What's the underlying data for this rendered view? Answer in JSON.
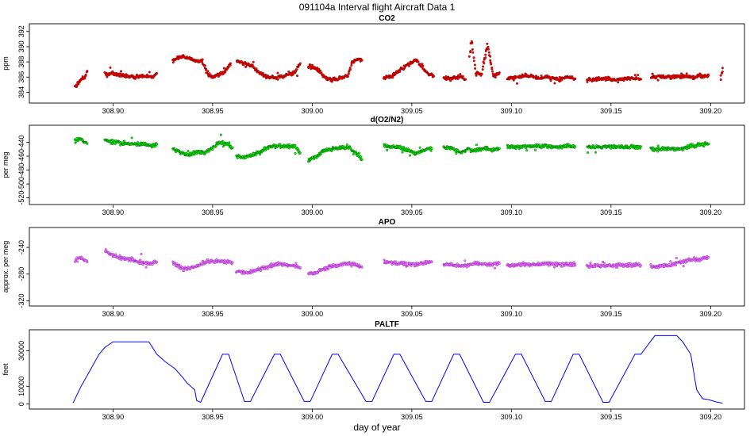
{
  "figure": {
    "title": "091104a   Interval flight Aircraft Data 1",
    "xlabel": "day of year"
  },
  "chart_data": [
    {
      "type": "scatter",
      "id": "co2",
      "title": "CO2",
      "ylabel": "ppm",
      "color": "#ff0000",
      "edge": "#7a0000",
      "xlim": [
        308.86,
        309.215
      ],
      "ylim": [
        383.0,
        392.6
      ],
      "yticks": [
        384,
        386,
        388,
        390,
        392
      ],
      "xticks": [
        "308.90",
        "308.95",
        "309.00",
        "309.05",
        "309.10",
        "309.15",
        "309.20"
      ],
      "series": [
        {
          "x": [
            308.881,
            308.882,
            308.884,
            308.886,
            308.887
          ],
          "y": [
            384.8,
            384.9,
            385.8,
            386.0,
            386.8
          ]
        },
        {
          "x": [
            308.896,
            308.9,
            308.905,
            308.91,
            308.915,
            308.92,
            308.922
          ],
          "y": [
            386.4,
            386.5,
            386.2,
            386.0,
            386.1,
            386.0,
            386.5
          ]
        },
        {
          "x": [
            308.93,
            308.933,
            308.937,
            308.941,
            308.945,
            308.947,
            308.95,
            308.954,
            308.957,
            308.959
          ],
          "y": [
            388.1,
            388.7,
            388.6,
            388.2,
            388.0,
            386.6,
            386.0,
            386.4,
            387.0,
            387.8
          ]
        },
        {
          "x": [
            308.962,
            308.966,
            308.97,
            308.974,
            308.978,
            308.983,
            308.987,
            308.991,
            308.994
          ],
          "y": [
            388.2,
            387.8,
            387.4,
            386.5,
            386.0,
            385.9,
            386.3,
            386.6,
            387.8
          ]
        },
        {
          "x": [
            308.998,
            309.002,
            309.006,
            309.01,
            309.014,
            309.018,
            309.02,
            309.022,
            309.025
          ],
          "y": [
            387.4,
            387.2,
            386.0,
            385.6,
            385.9,
            386.2,
            388.0,
            388.3,
            388.2
          ]
        },
        {
          "x": [
            309.036,
            309.04,
            309.044,
            309.048,
            309.052,
            309.055,
            309.058,
            309.061
          ],
          "y": [
            386.0,
            386.1,
            386.9,
            387.6,
            388.3,
            387.4,
            386.4,
            386.1
          ]
        },
        {
          "x": [
            309.066,
            309.07,
            309.074,
            309.077
          ],
          "y": [
            385.9,
            385.8,
            386.1,
            385.7
          ]
        },
        {
          "x": [
            309.079,
            309.08,
            309.082,
            309.085,
            309.088,
            309.091,
            309.094
          ],
          "y": [
            388.6,
            390.8,
            386.6,
            386.3,
            390.2,
            386.0,
            386.6
          ]
        },
        {
          "x": [
            309.098,
            309.103,
            309.108,
            309.113,
            309.118,
            309.123,
            309.128,
            309.132
          ],
          "y": [
            385.8,
            386.0,
            386.2,
            385.9,
            386.0,
            385.7,
            386.0,
            385.8
          ]
        },
        {
          "x": [
            309.138,
            309.143,
            309.148,
            309.153,
            309.158,
            309.163,
            309.165
          ],
          "y": [
            385.6,
            385.7,
            385.8,
            385.6,
            385.8,
            385.9,
            385.7
          ]
        },
        {
          "x": [
            309.17,
            309.175,
            309.18,
            309.185,
            309.19,
            309.195,
            309.199
          ],
          "y": [
            386.0,
            386.1,
            386.0,
            386.2,
            386.0,
            386.1,
            386.2
          ]
        },
        {
          "x": [
            309.205,
            309.206
          ],
          "y": [
            385.8,
            387.2
          ]
        }
      ]
    },
    {
      "type": "scatter",
      "id": "o2n2",
      "title": "d(O2/N2)",
      "ylabel": "per meg",
      "color": "#00ff00",
      "edge": "#005500",
      "xlim": [
        308.86,
        309.215
      ],
      "ylim": [
        -525,
        -420
      ],
      "yticks": [
        -440,
        -460,
        -480,
        -500,
        -520
      ],
      "xticks": [
        "308.90",
        "308.95",
        "309.00",
        "309.05",
        "309.10",
        "309.15",
        "309.20"
      ],
      "series": [
        {
          "x": [
            308.881,
            308.883,
            308.885,
            308.887
          ],
          "y": [
            -439,
            -434,
            -438,
            -442
          ]
        },
        {
          "x": [
            308.896,
            308.9,
            308.905,
            308.91,
            308.915,
            308.92,
            308.922
          ],
          "y": [
            -437,
            -440,
            -441,
            -442,
            -443,
            -445,
            -443
          ]
        },
        {
          "x": [
            308.93,
            308.934,
            308.938,
            308.942,
            308.946,
            308.95,
            308.954,
            308.958,
            308.96
          ],
          "y": [
            -448,
            -455,
            -459,
            -454,
            -455,
            -447,
            -440,
            -443,
            -448
          ]
        },
        {
          "x": [
            308.962,
            308.966,
            308.97,
            308.974,
            308.978,
            308.983,
            308.987,
            308.991,
            308.994
          ],
          "y": [
            -459,
            -462,
            -458,
            -454,
            -447,
            -445,
            -446,
            -445,
            -455
          ]
        },
        {
          "x": [
            308.998,
            309.002,
            309.006,
            309.01,
            309.014,
            309.018,
            309.022,
            309.025
          ],
          "y": [
            -466,
            -460,
            -452,
            -449,
            -448,
            -447,
            -455,
            -465
          ]
        },
        {
          "x": [
            309.036,
            309.04,
            309.044,
            309.048,
            309.052,
            309.056,
            309.06
          ],
          "y": [
            -444,
            -446,
            -448,
            -452,
            -456,
            -451,
            -449
          ]
        },
        {
          "x": [
            309.066,
            309.07,
            309.074,
            309.078,
            309.082,
            309.086,
            309.09,
            309.094
          ],
          "y": [
            -447,
            -448,
            -455,
            -450,
            -452,
            -449,
            -451,
            -449
          ]
        },
        {
          "x": [
            309.098,
            309.103,
            309.108,
            309.113,
            309.118,
            309.123,
            309.128,
            309.132
          ],
          "y": [
            -446,
            -447,
            -446,
            -445,
            -446,
            -447,
            -445,
            -446
          ]
        },
        {
          "x": [
            309.138,
            309.143,
            309.148,
            309.153,
            309.158,
            309.163,
            309.165
          ],
          "y": [
            -446,
            -447,
            -446,
            -447,
            -446,
            -447,
            -446
          ]
        },
        {
          "x": [
            309.17,
            309.175,
            309.18,
            309.185,
            309.19,
            309.195,
            309.199
          ],
          "y": [
            -450,
            -450,
            -449,
            -450,
            -445,
            -443,
            -442
          ]
        }
      ]
    },
    {
      "type": "scatter",
      "id": "apo",
      "title": "APO",
      "ylabel": "approx. per meg",
      "color": "#ee82ee",
      "edge": "#9a22c8",
      "xlim": [
        308.86,
        309.215
      ],
      "ylim": [
        -323,
        -215
      ],
      "yticks": [
        -240,
        -280,
        -320
      ],
      "xticks": [
        "308.90",
        "308.95",
        "309.00",
        "309.05",
        "309.10",
        "309.15",
        "309.20"
      ],
      "series": [
        {
          "x": [
            308.881,
            308.883,
            308.885,
            308.887
          ],
          "y": [
            -260,
            -255,
            -258,
            -262
          ]
        },
        {
          "x": [
            308.896,
            308.9,
            308.905,
            308.91,
            308.915,
            308.92,
            308.922
          ],
          "y": [
            -245,
            -252,
            -256,
            -259,
            -263,
            -264,
            -262
          ]
        },
        {
          "x": [
            308.93,
            308.934,
            308.938,
            308.942,
            308.946,
            308.95,
            308.954,
            308.958,
            308.96
          ],
          "y": [
            -264,
            -270,
            -272,
            -268,
            -262,
            -260,
            -261,
            -262,
            -263
          ]
        },
        {
          "x": [
            308.962,
            308.966,
            308.97,
            308.974,
            308.978,
            308.983,
            308.987,
            308.991,
            308.994
          ],
          "y": [
            -275,
            -278,
            -276,
            -272,
            -268,
            -265,
            -266,
            -268,
            -270
          ]
        },
        {
          "x": [
            308.998,
            309.002,
            309.006,
            309.01,
            309.014,
            309.018,
            309.022,
            309.025
          ],
          "y": [
            -280,
            -278,
            -272,
            -268,
            -266,
            -265,
            -266,
            -270
          ]
        },
        {
          "x": [
            309.036,
            309.04,
            309.044,
            309.048,
            309.052,
            309.056,
            309.06
          ],
          "y": [
            -262,
            -263,
            -264,
            -265,
            -266,
            -263,
            -262
          ]
        },
        {
          "x": [
            309.066,
            309.07,
            309.074,
            309.078,
            309.082,
            309.086,
            309.09,
            309.094
          ],
          "y": [
            -265,
            -266,
            -268,
            -266,
            -264,
            -265,
            -265,
            -264
          ]
        },
        {
          "x": [
            309.098,
            309.103,
            309.108,
            309.113,
            309.118,
            309.123,
            309.128,
            309.132
          ],
          "y": [
            -267,
            -266,
            -265,
            -266,
            -264,
            -265,
            -266,
            -265
          ]
        },
        {
          "x": [
            309.138,
            309.143,
            309.148,
            309.153,
            309.158,
            309.163,
            309.165
          ],
          "y": [
            -268,
            -267,
            -268,
            -266,
            -267,
            -266,
            -267
          ]
        },
        {
          "x": [
            309.17,
            309.175,
            309.18,
            309.185,
            309.19,
            309.195,
            309.199
          ],
          "y": [
            -270,
            -268,
            -266,
            -262,
            -259,
            -257,
            -255
          ]
        }
      ]
    },
    {
      "type": "line",
      "id": "paltf",
      "title": "PALTF",
      "ylabel": "feet",
      "color": "#0000ff",
      "xlim": [
        308.86,
        309.215
      ],
      "ylim": [
        -1000,
        40000
      ],
      "yticks": [
        0,
        10000,
        30000
      ],
      "xticks": [
        "308.90",
        "308.95",
        "309.00",
        "309.05",
        "309.10",
        "309.15",
        "309.20"
      ],
      "x": [
        308.88,
        308.884,
        308.888,
        308.893,
        308.896,
        308.9,
        308.918,
        308.922,
        308.926,
        308.931,
        308.935,
        308.937,
        308.941,
        308.942,
        308.944,
        308.955,
        308.958,
        308.966,
        308.969,
        308.981,
        308.984,
        308.996,
        308.999,
        309.01,
        309.013,
        309.027,
        309.03,
        309.041,
        309.044,
        309.057,
        309.06,
        309.071,
        309.074,
        309.086,
        309.089,
        309.102,
        309.105,
        309.117,
        309.12,
        309.131,
        309.134,
        309.146,
        309.149,
        309.162,
        309.165,
        309.172,
        309.183,
        309.186,
        309.19,
        309.193,
        309.196,
        309.199,
        309.203,
        309.206
      ],
      "y": [
        800,
        10000,
        18000,
        28000,
        32000,
        35000,
        35000,
        28000,
        24000,
        20000,
        15000,
        12000,
        8000,
        2000,
        1000,
        28000,
        28000,
        1500,
        1500,
        28000,
        28000,
        1500,
        1500,
        28000,
        28000,
        1500,
        1500,
        28000,
        28000,
        1500,
        1500,
        28000,
        28000,
        1000,
        1000,
        28000,
        28000,
        1500,
        1500,
        28000,
        28000,
        1000,
        1000,
        28000,
        28000,
        38500,
        38500,
        35000,
        28000,
        8000,
        3000,
        2500,
        1200,
        500
      ]
    }
  ]
}
